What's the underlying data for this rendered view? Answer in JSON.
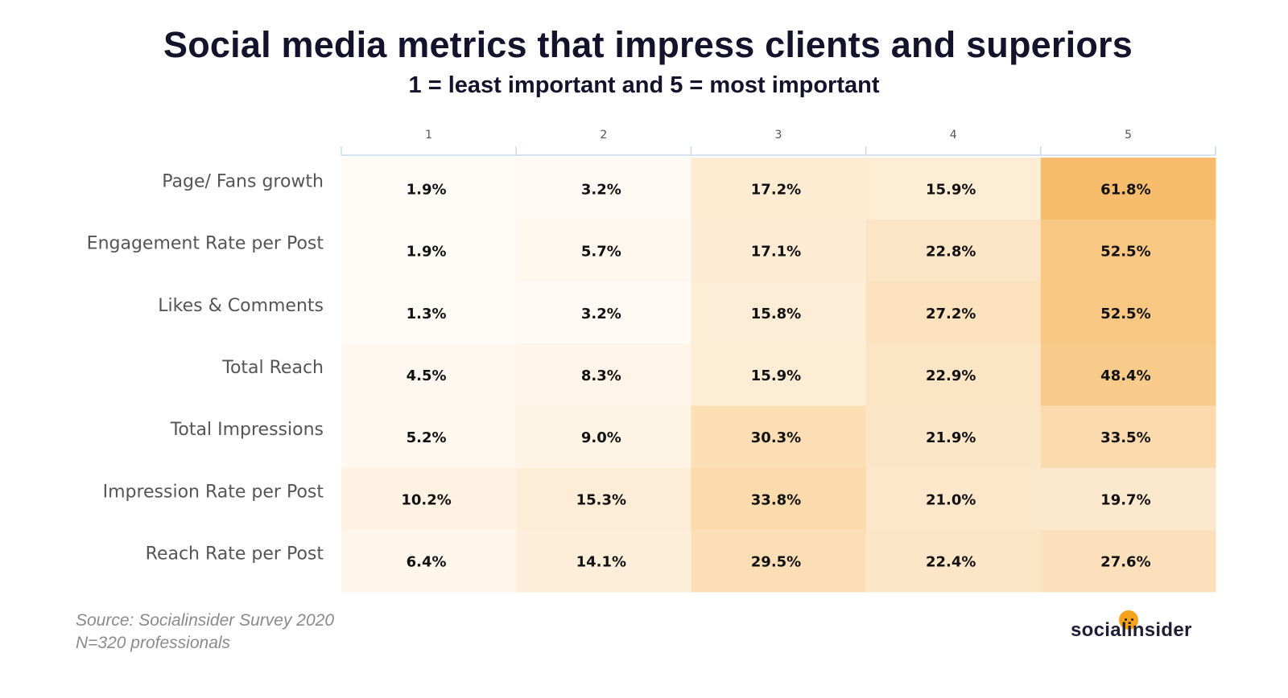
{
  "header": {
    "title": "Social media metrics that impress clients and superiors",
    "subtitle": "1 = least important and 5 = most important"
  },
  "footer": {
    "source_line1": "Source: Socialinsider Survey 2020",
    "source_line2": "N=320 professionals",
    "logo_text": "socialinsider"
  },
  "colors": {
    "low": "#fffdfa",
    "high": "#f7bd6c",
    "axis": "#c9d9e8"
  },
  "chart_data": {
    "type": "heatmap",
    "title": "Social media metrics that impress clients and superiors",
    "subtitle": "1 = least important and 5 = most important",
    "columns": [
      "1",
      "2",
      "3",
      "4",
      "5"
    ],
    "rows": [
      "Page/ Fans growth",
      "Engagement Rate per Post",
      "Likes & Comments",
      "Total Reach",
      "Total Impressions",
      "Impression Rate per Post",
      "Reach Rate per Post"
    ],
    "values": [
      [
        1.9,
        3.2,
        17.2,
        15.9,
        61.8
      ],
      [
        1.9,
        5.7,
        17.1,
        22.8,
        52.5
      ],
      [
        1.3,
        3.2,
        15.8,
        27.2,
        52.5
      ],
      [
        4.5,
        8.3,
        15.9,
        22.9,
        48.4
      ],
      [
        5.2,
        9.0,
        30.3,
        21.9,
        33.5
      ],
      [
        10.2,
        15.3,
        33.8,
        21.0,
        19.7
      ],
      [
        6.4,
        14.1,
        29.5,
        22.4,
        27.6
      ]
    ],
    "unit": "%",
    "value_range": [
      0,
      61.8
    ]
  }
}
